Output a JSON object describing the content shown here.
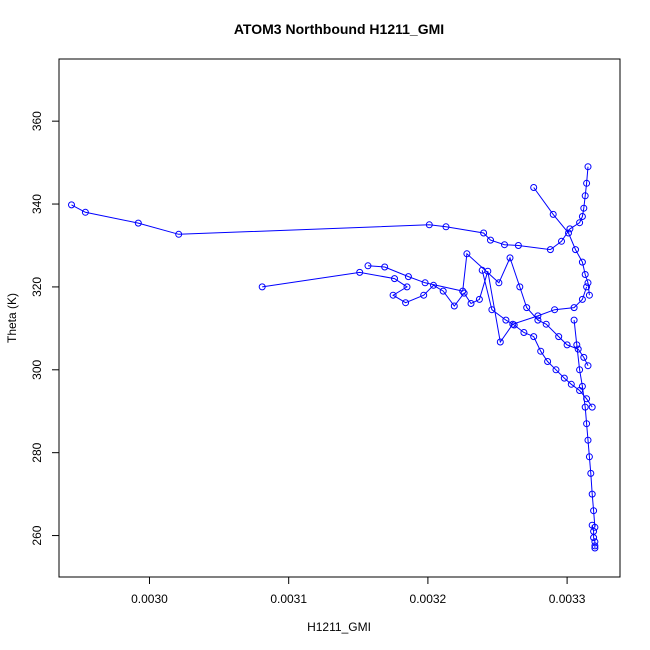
{
  "chart_data": {
    "type": "line",
    "title": "ATOM3 Northbound H1211_GMI",
    "xlabel": "H1211_GMI",
    "ylabel": "Theta (K)",
    "xlim": [
      0.002935,
      0.003338
    ],
    "ylim": [
      250,
      375
    ],
    "xticks": [
      0.003,
      0.0031,
      0.0032,
      0.0033
    ],
    "xtick_labels": [
      "0.0030",
      "0.0031",
      "0.0032",
      "0.0033"
    ],
    "yticks": [
      260,
      280,
      300,
      320,
      340,
      360
    ],
    "ytick_labels": [
      "260",
      "280",
      "300",
      "320",
      "340",
      "360"
    ],
    "marker": "open-circle",
    "series_color": "#0000ff",
    "grid": false,
    "series": [
      {
        "x": [
          0.002944,
          0.002954,
          0.002992,
          0.003021,
          0.003201,
          0.003213,
          0.00324,
          0.003245,
          0.003255,
          0.003265,
          0.003288,
          0.003296,
          0.003302,
          0.003309,
          0.003311,
          0.003312,
          0.003313,
          0.003314,
          0.003315
        ],
        "y": [
          339.8,
          338.0,
          335.4,
          332.7,
          335.0,
          334.5,
          333.0,
          331.3,
          330.2,
          330.0,
          329.0,
          331.0,
          334.0,
          335.5,
          337.0,
          339.0,
          342.0,
          345.0,
          349.0
        ]
      },
      {
        "x": [
          0.003276,
          0.00329,
          0.003301,
          0.003306,
          0.003311,
          0.003313,
          0.003315,
          0.003316
        ],
        "y": [
          344.0,
          337.5,
          333.0,
          329.0,
          326.0,
          323.0,
          321.0,
          318.0
        ]
      },
      {
        "x": [
          0.003081,
          0.003151,
          0.003176,
          0.003185,
          0.003175,
          0.003184,
          0.003197,
          0.003204,
          0.003211,
          0.003219,
          0.003226,
          0.003231,
          0.003237,
          0.003243,
          0.003252,
          0.003261,
          0.003279,
          0.003291,
          0.003305,
          0.003311,
          0.003314
        ],
        "y": [
          320.0,
          323.5,
          322.0,
          320.0,
          318.0,
          316.2,
          318.0,
          320.4,
          319.0,
          315.4,
          318.5,
          316.0,
          317.0,
          323.8,
          306.7,
          311.0,
          313.0,
          314.5,
          315.0,
          317.0,
          320.0
        ]
      },
      {
        "x": [
          0.003157,
          0.003169,
          0.003186,
          0.003198,
          0.003225,
          0.003228,
          0.003251,
          0.003259,
          0.003266,
          0.003271,
          0.003279,
          0.003285,
          0.003294,
          0.0033,
          0.003308,
          0.003312,
          0.003315
        ],
        "y": [
          325.1,
          324.8,
          322.5,
          321.0,
          319.0,
          328.0,
          321.0,
          327.0,
          320.0,
          315.0,
          312.0,
          311.0,
          308.0,
          306.0,
          305.0,
          303.0,
          301.0
        ]
      },
      {
        "x": [
          0.003239,
          0.003246,
          0.003256,
          0.003262,
          0.003269,
          0.003276,
          0.003281,
          0.003286,
          0.003292,
          0.003298,
          0.003303,
          0.003309,
          0.003314,
          0.003318
        ],
        "y": [
          324.0,
          314.5,
          312.0,
          310.8,
          309.0,
          308.0,
          304.5,
          302.0,
          300.0,
          298.0,
          296.5,
          295.0,
          293.0,
          291.0
        ]
      },
      {
        "x": [
          0.003305,
          0.003307,
          0.003309,
          0.003311,
          0.003313,
          0.003314,
          0.003315,
          0.003316,
          0.003317,
          0.003318,
          0.003319,
          0.00332
        ],
        "y": [
          312.0,
          306.0,
          300.0,
          296.0,
          291.0,
          287.0,
          283.0,
          279.0,
          275.0,
          270.0,
          266.0,
          262.0
        ]
      },
      {
        "x": [
          0.003318,
          0.003319,
          0.003319,
          0.00332,
          0.00332,
          0.00332
        ],
        "y": [
          262.5,
          261.0,
          259.5,
          258.5,
          257.5,
          257.0
        ]
      }
    ]
  }
}
